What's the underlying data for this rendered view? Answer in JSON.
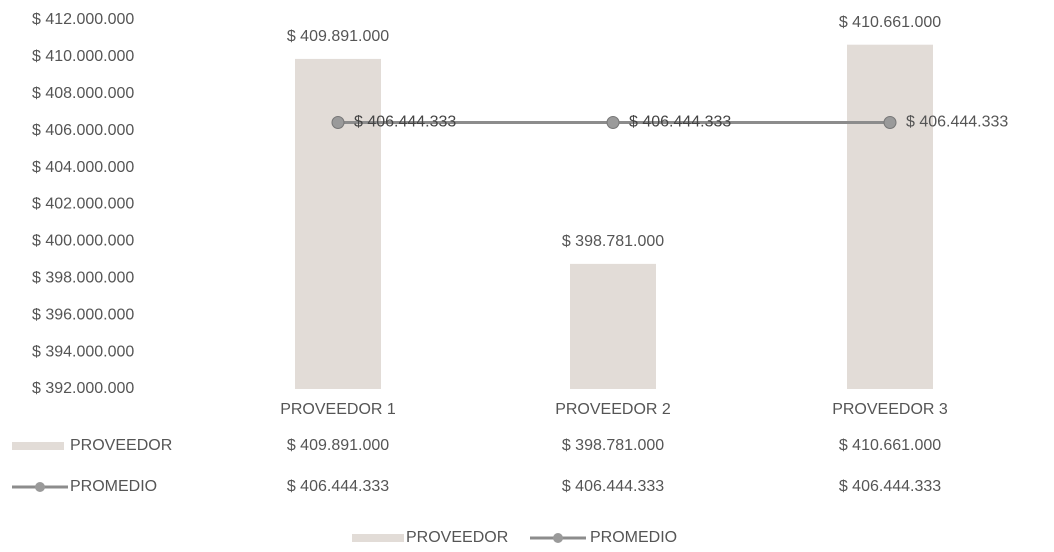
{
  "chart_data": {
    "type": "bar",
    "categories": [
      "PROVEEDOR 1",
      "PROVEEDOR 2",
      "PROVEEDOR 3"
    ],
    "series": [
      {
        "name": "PROVEEDOR",
        "type": "bar",
        "color": "#e2dcd7",
        "values": [
          409891000,
          398781000,
          410661000
        ],
        "value_labels": [
          "$ 409.891.000",
          "$ 398.781.000",
          "$ 410.661.000"
        ]
      },
      {
        "name": "PROMEDIO",
        "type": "line",
        "color": "#8c8c8c",
        "values": [
          406444333,
          406444333,
          406444333
        ],
        "value_labels": [
          "$ 406.444.333",
          "$ 406.444.333",
          "$ 406.444.333"
        ]
      }
    ],
    "ylim": [
      392000000,
      412000000
    ],
    "yticks": [
      {
        "value": 392000000,
        "label": "$ 392.000.000"
      },
      {
        "value": 394000000,
        "label": "$ 394.000.000"
      },
      {
        "value": 396000000,
        "label": "$ 396.000.000"
      },
      {
        "value": 398000000,
        "label": "$ 398.000.000"
      },
      {
        "value": 400000000,
        "label": "$ 400.000.000"
      },
      {
        "value": 402000000,
        "label": "$ 402.000.000"
      },
      {
        "value": 404000000,
        "label": "$ 404.000.000"
      },
      {
        "value": 406000000,
        "label": "$ 406.000.000"
      },
      {
        "value": 408000000,
        "label": "$ 408.000.000"
      },
      {
        "value": 410000000,
        "label": "$ 410.000.000"
      },
      {
        "value": 412000000,
        "label": "$ 412.000.000"
      }
    ],
    "grid": false,
    "data_table": true,
    "legend": "bottom"
  }
}
